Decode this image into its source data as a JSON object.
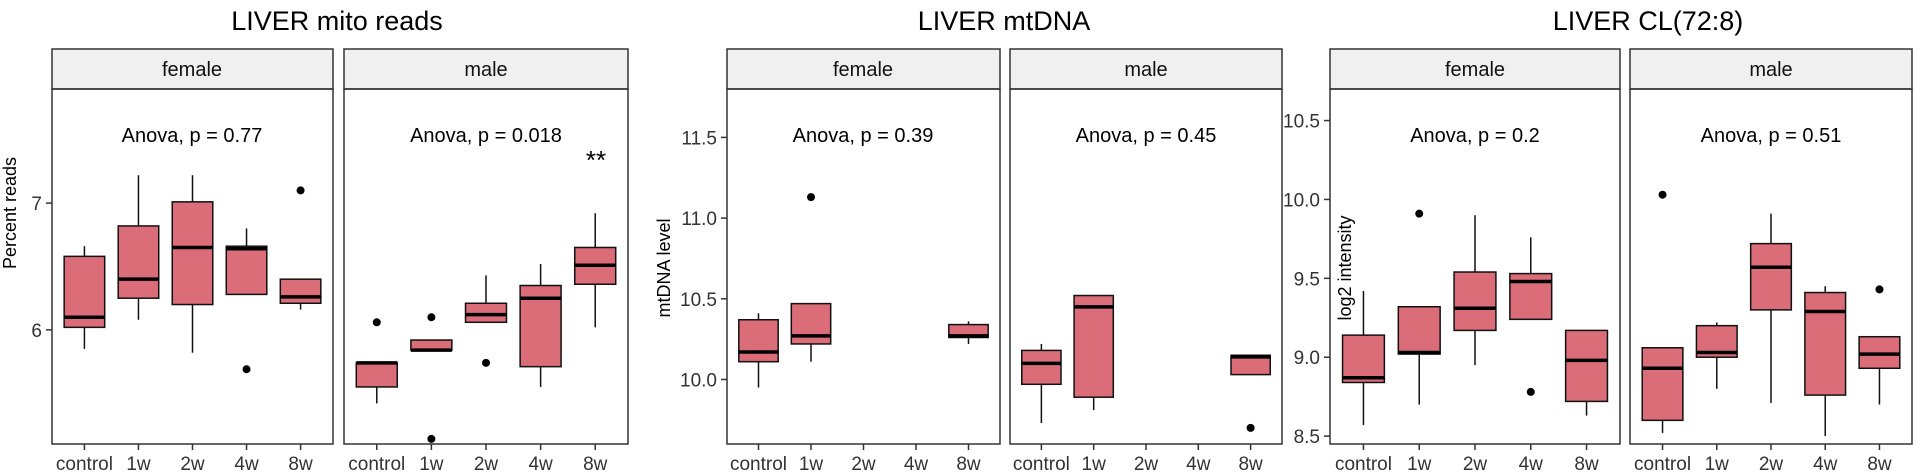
{
  "chart_data": [
    {
      "type": "box",
      "title": "LIVER mito reads",
      "ylabel": "Percent reads",
      "ylim": [
        5.1,
        7.9
      ],
      "yticks": [
        6,
        7
      ],
      "categories": [
        "control",
        "1w",
        "2w",
        "4w",
        "8w"
      ],
      "facets": [
        {
          "name": "female",
          "annotation": "Anova, p = 0.77",
          "significance": "",
          "boxes": [
            {
              "category": "control",
              "min": 5.85,
              "q1": 6.02,
              "median": 6.1,
              "q3": 6.58,
              "max": 6.66,
              "outliers": []
            },
            {
              "category": "1w",
              "min": 6.08,
              "q1": 6.25,
              "median": 6.4,
              "q3": 6.82,
              "max": 7.22,
              "outliers": []
            },
            {
              "category": "2w",
              "min": 5.82,
              "q1": 6.2,
              "median": 6.65,
              "q3": 7.01,
              "max": 7.22,
              "outliers": []
            },
            {
              "category": "4w",
              "min": 6.28,
              "q1": 6.28,
              "median": 6.64,
              "q3": 6.66,
              "max": 6.8,
              "outliers": [
                5.69
              ]
            },
            {
              "category": "8w",
              "min": 6.16,
              "q1": 6.21,
              "median": 6.26,
              "q3": 6.4,
              "max": 6.4,
              "outliers": [
                7.1
              ]
            }
          ]
        },
        {
          "name": "male",
          "annotation": "Anova, p = 0.018",
          "significance": "**",
          "boxes": [
            {
              "category": "control",
              "min": 5.42,
              "q1": 5.55,
              "median": 5.74,
              "q3": 5.74,
              "max": 5.74,
              "outliers": [
                6.06
              ]
            },
            {
              "category": "1w",
              "min": 5.83,
              "q1": 5.84,
              "median": 5.84,
              "q3": 5.92,
              "max": 5.92,
              "outliers": [
                6.1,
                5.14
              ]
            },
            {
              "category": "2w",
              "min": 6.06,
              "q1": 6.06,
              "median": 6.12,
              "q3": 6.21,
              "max": 6.43,
              "outliers": [
                5.74
              ]
            },
            {
              "category": "4w",
              "min": 5.55,
              "q1": 5.71,
              "median": 6.25,
              "q3": 6.35,
              "max": 6.52,
              "outliers": []
            },
            {
              "category": "8w",
              "min": 6.02,
              "q1": 6.36,
              "median": 6.51,
              "q3": 6.65,
              "max": 6.92,
              "outliers": []
            }
          ]
        }
      ]
    },
    {
      "type": "box",
      "title": "LIVER mtDNA",
      "ylabel": "mtDNA level",
      "ylim": [
        9.6,
        11.8
      ],
      "yticks": [
        10.0,
        10.5,
        11.0,
        11.5
      ],
      "categories": [
        "control",
        "1w",
        "2w",
        "4w",
        "8w"
      ],
      "facets": [
        {
          "name": "female",
          "annotation": "Anova, p = 0.39",
          "significance": "",
          "boxes": [
            {
              "category": "control",
              "min": 9.95,
              "q1": 10.11,
              "median": 10.17,
              "q3": 10.37,
              "max": 10.41,
              "outliers": []
            },
            {
              "category": "1w",
              "min": 10.11,
              "q1": 10.22,
              "median": 10.27,
              "q3": 10.47,
              "max": 10.47,
              "outliers": [
                11.13
              ]
            },
            {
              "category": "2w",
              "empty": true,
              "outliers": []
            },
            {
              "category": "4w",
              "empty": true,
              "outliers": []
            },
            {
              "category": "8w",
              "min": 10.22,
              "q1": 10.26,
              "median": 10.27,
              "q3": 10.34,
              "max": 10.36,
              "outliers": []
            }
          ]
        },
        {
          "name": "male",
          "annotation": "Anova, p = 0.45",
          "significance": "",
          "boxes": [
            {
              "category": "control",
              "min": 9.73,
              "q1": 9.97,
              "median": 10.1,
              "q3": 10.18,
              "max": 10.22,
              "outliers": []
            },
            {
              "category": "1w",
              "min": 9.81,
              "q1": 9.89,
              "median": 10.45,
              "q3": 10.52,
              "max": 10.52,
              "outliers": []
            },
            {
              "category": "2w",
              "empty": true,
              "outliers": []
            },
            {
              "category": "4w",
              "empty": true,
              "outliers": []
            },
            {
              "category": "8w",
              "min": 10.03,
              "q1": 10.03,
              "median": 10.14,
              "q3": 10.15,
              "max": 10.15,
              "outliers": [
                9.7
              ]
            }
          ]
        }
      ]
    },
    {
      "type": "box",
      "title": "LIVER CL(72:8)",
      "ylabel": "log2 intensity",
      "ylim": [
        8.45,
        10.7
      ],
      "yticks": [
        8.5,
        9.0,
        9.5,
        10.0,
        10.5
      ],
      "categories": [
        "control",
        "1w",
        "2w",
        "4w",
        "8w"
      ],
      "facets": [
        {
          "name": "female",
          "annotation": "Anova, p = 0.2",
          "significance": "",
          "boxes": [
            {
              "category": "control",
              "min": 8.57,
              "q1": 8.84,
              "median": 8.87,
              "q3": 9.14,
              "max": 9.42,
              "outliers": []
            },
            {
              "category": "1w",
              "min": 8.7,
              "q1": 9.02,
              "median": 9.03,
              "q3": 9.32,
              "max": 9.32,
              "outliers": [
                9.91
              ]
            },
            {
              "category": "2w",
              "min": 8.95,
              "q1": 9.17,
              "median": 9.31,
              "q3": 9.54,
              "max": 9.9,
              "outliers": []
            },
            {
              "category": "4w",
              "min": 9.24,
              "q1": 9.24,
              "median": 9.48,
              "q3": 9.53,
              "max": 9.76,
              "outliers": [
                8.78
              ]
            },
            {
              "category": "8w",
              "min": 8.63,
              "q1": 8.72,
              "median": 8.98,
              "q3": 9.17,
              "max": 9.17,
              "outliers": []
            }
          ]
        },
        {
          "name": "male",
          "annotation": "Anova, p = 0.51",
          "significance": "",
          "boxes": [
            {
              "category": "control",
              "min": 8.52,
              "q1": 8.6,
              "median": 8.93,
              "q3": 9.06,
              "max": 9.06,
              "outliers": [
                10.03
              ]
            },
            {
              "category": "1w",
              "min": 8.8,
              "q1": 9.0,
              "median": 9.03,
              "q3": 9.2,
              "max": 9.22,
              "outliers": []
            },
            {
              "category": "2w",
              "min": 8.71,
              "q1": 9.3,
              "median": 9.57,
              "q3": 9.72,
              "max": 9.91,
              "outliers": []
            },
            {
              "category": "4w",
              "min": 8.5,
              "q1": 8.76,
              "median": 9.29,
              "q3": 9.41,
              "max": 9.45,
              "outliers": []
            },
            {
              "category": "8w",
              "min": 8.7,
              "q1": 8.93,
              "median": 9.02,
              "q3": 9.13,
              "max": 9.13,
              "outliers": [
                9.43
              ]
            }
          ]
        }
      ]
    }
  ],
  "colors": {
    "box_fill": "#db6d79",
    "strip_fill": "#f0f0f0",
    "ink": "#000000",
    "background": "#ffffff"
  }
}
